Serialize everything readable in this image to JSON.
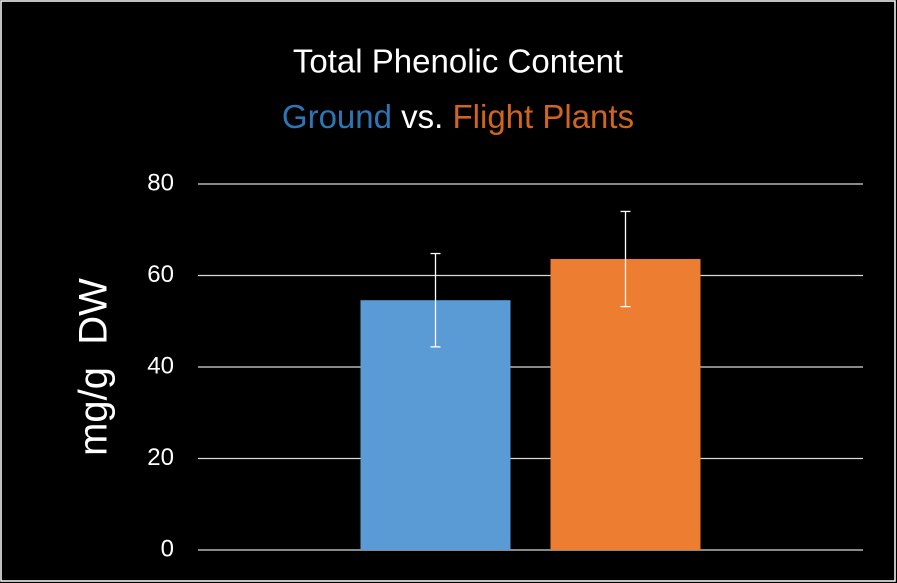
{
  "chart_data": {
    "type": "bar",
    "title": "Total Phenolic Content",
    "subtitle_connector": "vs.",
    "y_axis_label": "mg/g  DW",
    "categories": [
      null
    ],
    "series": [
      {
        "name": "Ground",
        "color": "#5b9bd5",
        "values": [
          54.6
        ],
        "errors": [
          10.2
        ]
      },
      {
        "name": "Flight Plants",
        "color": "#ed7d31",
        "values": [
          63.6
        ],
        "errors": [
          10.4
        ]
      }
    ],
    "ylim": [
      0,
      80
    ],
    "yticks": [
      0,
      20,
      40,
      60,
      80
    ],
    "grid": true
  }
}
